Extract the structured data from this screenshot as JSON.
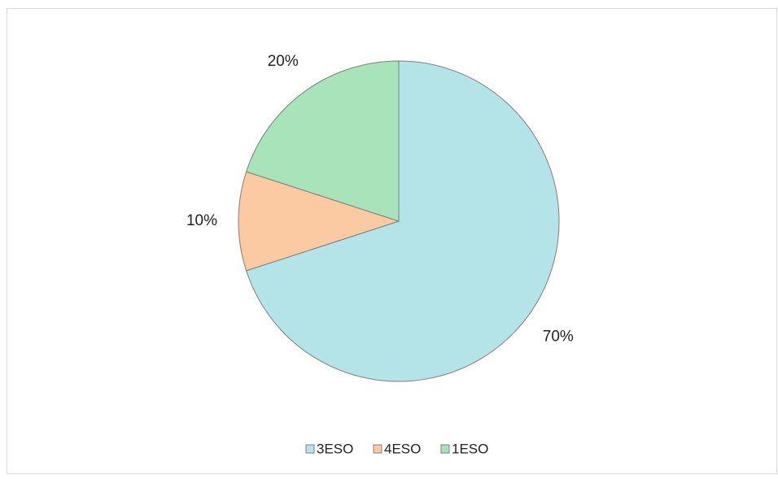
{
  "chart_data": {
    "type": "pie",
    "categories": [
      "3ESO",
      "4ESO",
      "1ESO"
    ],
    "values": [
      70,
      10,
      20
    ],
    "value_labels": [
      "70%",
      "10%",
      "20%"
    ],
    "colors": [
      "#b5e4e8",
      "#fbc9a2",
      "#a9e3b9"
    ],
    "legend": "bottom"
  }
}
